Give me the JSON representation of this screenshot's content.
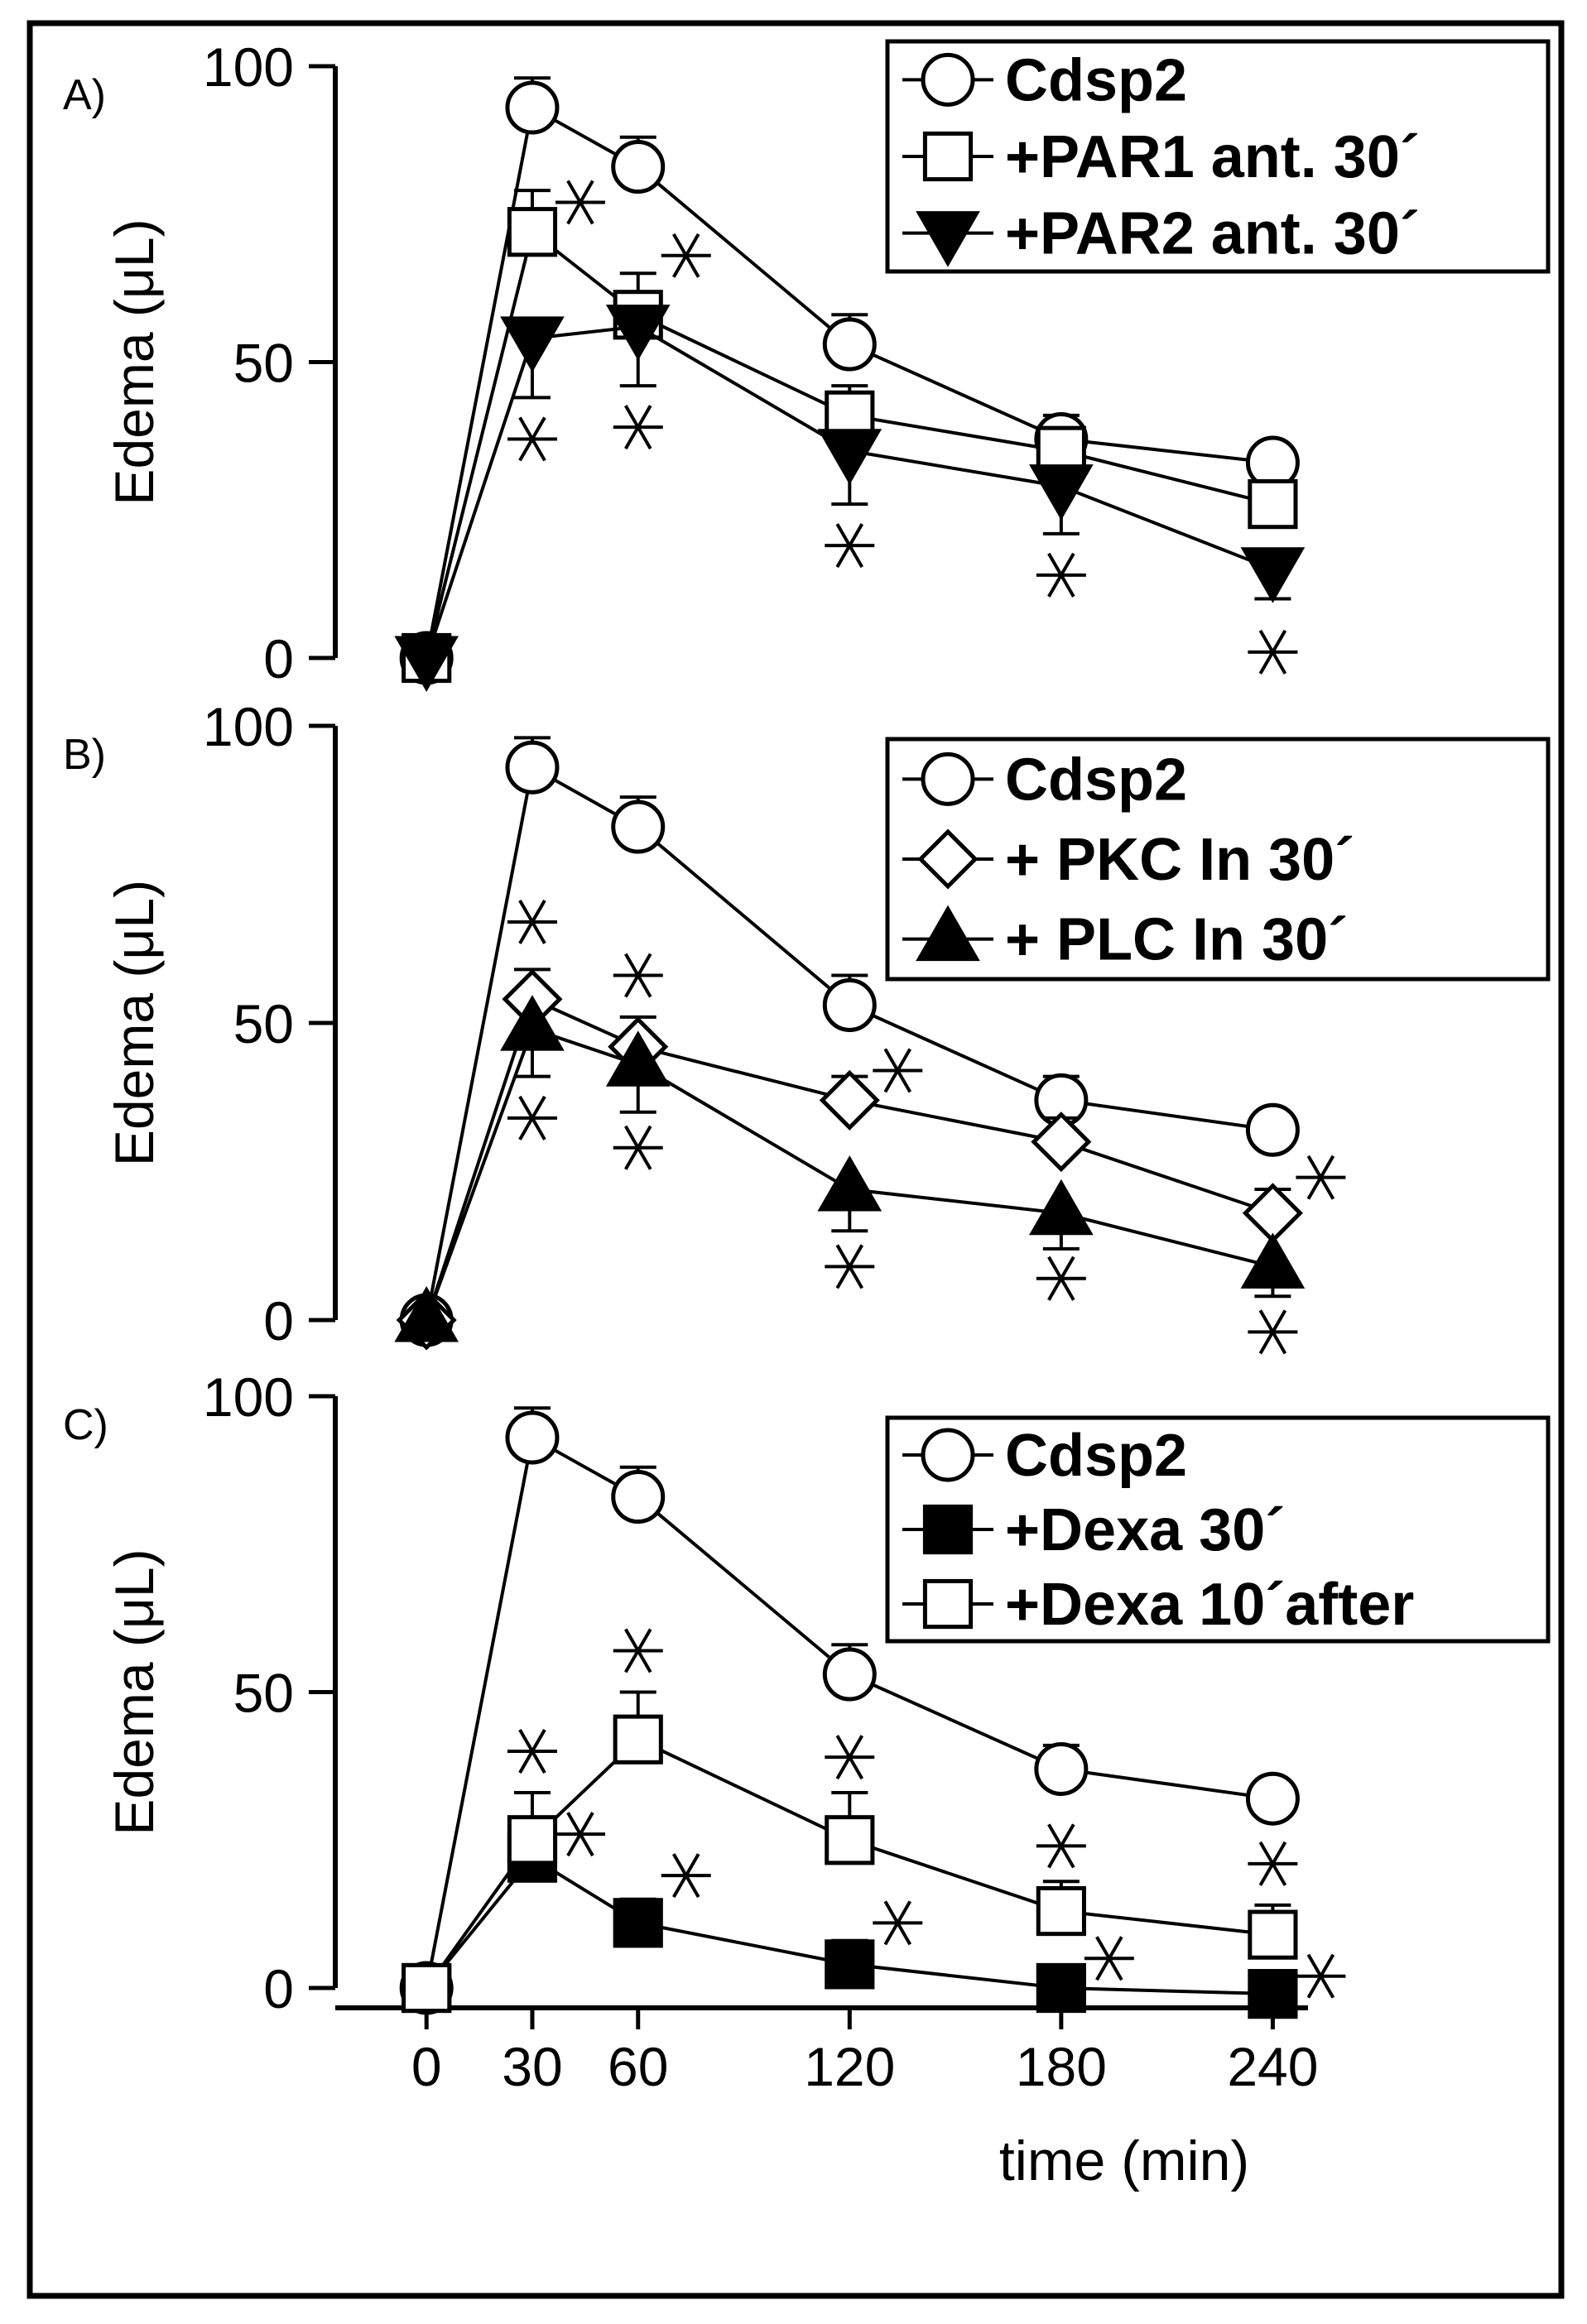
{
  "chart_data": {
    "type": "line",
    "x": [
      0,
      30,
      60,
      120,
      180,
      240
    ],
    "xlabel": "time (min)",
    "x_tick_labels": [
      "0",
      "30",
      "60",
      "120",
      "180",
      "240"
    ],
    "colors": {
      "line": "#000000",
      "open_fill": "#ffffff",
      "solid_fill": "#000000",
      "background": "#ffffff"
    },
    "panels": [
      {
        "label": "A)",
        "ylabel": "Edema (μL)",
        "ylim": [
          0,
          100
        ],
        "y_tick_labels": [
          "100",
          "50",
          "0"
        ],
        "legend_position": "top-right",
        "series": [
          {
            "name": "Cdsp2",
            "marker": "circle-open",
            "values": [
              0,
              93,
              83,
              53,
              37,
              33
            ],
            "errors": [
              0,
              5,
              5,
              5,
              4,
              3
            ],
            "error_dir": "up",
            "stars": []
          },
          {
            "name": "+PAR1 ant. 30´",
            "marker": "square-open",
            "values": [
              0,
              72,
              58,
              41,
              35,
              26
            ],
            "errors": [
              0,
              7,
              7,
              5,
              3,
              3
            ],
            "error_dir": "up",
            "stars": [
              {
                "x": 30,
                "y": 77,
                "side": "right"
              },
              {
                "x": 60,
                "y": 68,
                "side": "right"
              }
            ]
          },
          {
            "name": "+PAR2 ant. 30´",
            "marker": "triangle-down-filled",
            "values": [
              0,
              54,
              56,
              35,
              29,
              15
            ],
            "errors": [
              0,
              10,
              10,
              9,
              8,
              5
            ],
            "error_dir": "down",
            "stars": [
              {
                "x": 30,
                "y": 37,
                "side": "below"
              },
              {
                "x": 60,
                "y": 39,
                "side": "below"
              },
              {
                "x": 120,
                "y": 19,
                "side": "below"
              },
              {
                "x": 180,
                "y": 14,
                "side": "below"
              },
              {
                "x": 240,
                "y": 1,
                "side": "below"
              }
            ]
          }
        ]
      },
      {
        "label": "B)",
        "ylabel": "Edema (μL)",
        "ylim": [
          0,
          100
        ],
        "y_tick_labels": [
          "100",
          "50",
          "0"
        ],
        "legend_position": "top-right",
        "series": [
          {
            "name": "Cdsp2",
            "marker": "circle-open",
            "values": [
              0,
              93,
              83,
              53,
              37,
              32
            ],
            "errors": [
              0,
              5,
              5,
              5,
              4,
              3
            ],
            "error_dir": "up",
            "stars": []
          },
          {
            "name": "+ PKC In 30´",
            "marker": "diamond-open",
            "values": [
              0,
              54,
              46,
              37,
              30,
              18
            ],
            "errors": [
              0,
              5,
              5,
              4,
              4,
              4
            ],
            "error_dir": "up",
            "stars": [
              {
                "x": 30,
                "y": 67,
                "side": "above"
              },
              {
                "x": 60,
                "y": 58,
                "side": "above"
              },
              {
                "x": 120,
                "y": 42,
                "side": "right"
              },
              {
                "x": 240,
                "y": 24,
                "side": "right"
              }
            ]
          },
          {
            "name": "+ PLC In 30´",
            "marker": "triangle-up-filled",
            "values": [
              0,
              49,
              43,
              22,
              18,
              9
            ],
            "errors": [
              0,
              8,
              8,
              7,
              6,
              5
            ],
            "error_dir": "down",
            "stars": [
              {
                "x": 30,
                "y": 34,
                "side": "below"
              },
              {
                "x": 60,
                "y": 29,
                "side": "below"
              },
              {
                "x": 120,
                "y": 9,
                "side": "below"
              },
              {
                "x": 180,
                "y": 7,
                "side": "below"
              },
              {
                "x": 240,
                "y": -2,
                "side": "below"
              }
            ]
          }
        ]
      },
      {
        "label": "C)",
        "ylabel": "Edema (μL)",
        "ylim": [
          0,
          100
        ],
        "y_tick_labels": [
          "100",
          "50",
          "0"
        ],
        "legend_position": "top-right",
        "series": [
          {
            "name": "Cdsp2",
            "marker": "circle-open",
            "values": [
              0,
              93,
              83,
              53,
              37,
              32
            ],
            "errors": [
              0,
              5,
              5,
              5,
              4,
              3
            ],
            "error_dir": "up",
            "stars": []
          },
          {
            "name": "+Dexa 30´",
            "marker": "square-filled",
            "values": [
              0,
              22,
              11,
              4,
              0,
              -1
            ],
            "errors": [
              0,
              4,
              4,
              4,
              3,
              3
            ],
            "error_dir": "up",
            "stars": [
              {
                "x": 30,
                "y": 26,
                "side": "right"
              },
              {
                "x": 60,
                "y": 19,
                "side": "right"
              },
              {
                "x": 120,
                "y": 11,
                "side": "right"
              },
              {
                "x": 180,
                "y": 5,
                "side": "right"
              },
              {
                "x": 240,
                "y": 2,
                "side": "right"
              }
            ]
          },
          {
            "name": "+Dexa 10´after",
            "marker": "square-open",
            "values": [
              0,
              25,
              42,
              25,
              13,
              9
            ],
            "errors": [
              0,
              8,
              8,
              8,
              5,
              5
            ],
            "error_dir": "up",
            "stars": [
              {
                "x": 30,
                "y": 40,
                "side": "above"
              },
              {
                "x": 60,
                "y": 57,
                "side": "above"
              },
              {
                "x": 120,
                "y": 39,
                "side": "above"
              },
              {
                "x": 180,
                "y": 24,
                "side": "above"
              },
              {
                "x": 240,
                "y": 21,
                "side": "above"
              }
            ]
          }
        ]
      }
    ]
  }
}
